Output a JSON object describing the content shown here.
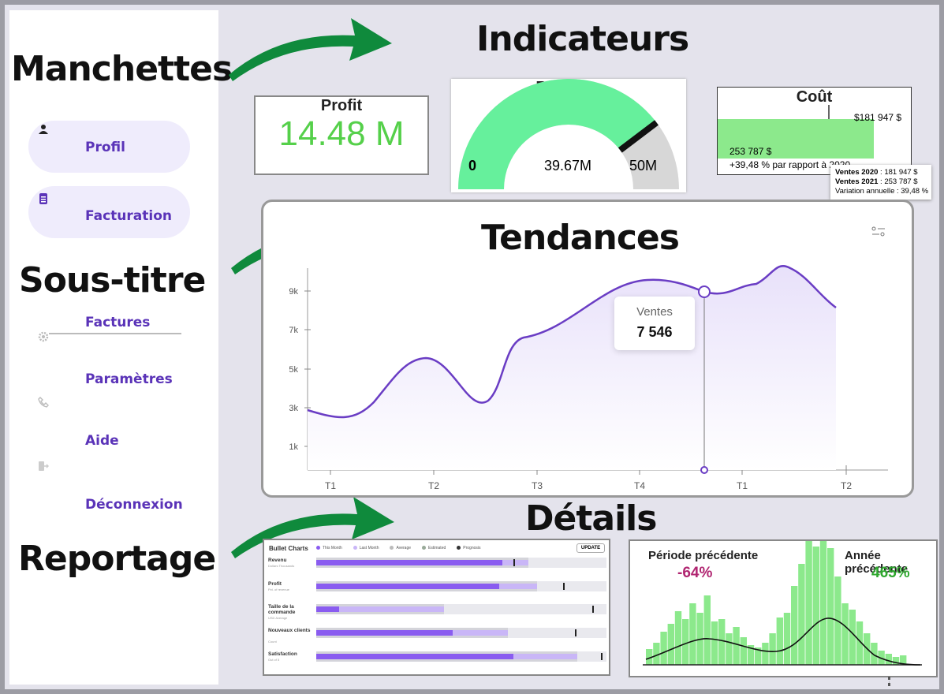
{
  "sidebar": {
    "heading_top": "Manchettes",
    "heading_mid": "Sous-titre",
    "heading_bottom": "Reportage",
    "items": [
      {
        "label": "Profil",
        "icon": "person-icon"
      },
      {
        "label": "Facturation",
        "icon": "document-icon"
      },
      {
        "label": "Factures",
        "icon": "gear-icon"
      },
      {
        "label": "Paramètres",
        "icon": "phone-icon"
      },
      {
        "label": "Aide",
        "icon": "logout-icon"
      },
      {
        "label": "Déconnexion",
        "icon": ""
      }
    ]
  },
  "sections": {
    "indicators": "Indicateurs",
    "trends": "Tendances",
    "details": "Détails"
  },
  "kpis": {
    "profit": {
      "title": "Profit",
      "value": "14.48 M"
    },
    "revenue": {
      "title": "Revenus",
      "min": "0",
      "max": "50M",
      "value": "39.67M",
      "fraction": 0.7934
    },
    "cost": {
      "title": "Coût",
      "target_label": "$181 947 $",
      "bar_label": "253 787 $",
      "change": "+39,48 % par rapport à 2020",
      "tooltip": {
        "line1_key": "Ventes 2020",
        "line1_val": " : 181 947 $",
        "line2_key": "Ventes 2021",
        "line2_val": " : 253 787 $",
        "line3": "Variation annuelle : 39,48 %"
      }
    }
  },
  "trend": {
    "tooltip_label": "Ventes",
    "tooltip_value": "7 546",
    "y_ticks": [
      "9k",
      "7k",
      "5k",
      "3k",
      "1k"
    ],
    "x_ticks": [
      "T1",
      "T2",
      "T3",
      "T4",
      "T1",
      "T2"
    ],
    "color": "#6a3dc4"
  },
  "bullet": {
    "title": "Bullet Charts",
    "legend": [
      "This Month",
      "Last Month",
      "Average",
      "Estimated",
      "Prognosis"
    ],
    "button": "UPDATE",
    "rows": [
      {
        "label": "Revenu",
        "sub": "Dollars Thousands",
        "value": 0.64,
        "previous": 0.73,
        "target": 0.68
      },
      {
        "label": "Profit",
        "sub": "Pct. of revenue",
        "value": 0.63,
        "previous": 0.76,
        "target": 0.85
      },
      {
        "label": "Taille de la commande",
        "sub": "USD Average",
        "value": 0.08,
        "previous": 0.44,
        "target": 0.95
      },
      {
        "label": "Nouveaux clients",
        "sub": "Count",
        "value": 0.47,
        "previous": 0.66,
        "target": 0.89
      },
      {
        "label": "Satisfaction",
        "sub": "Out of 5",
        "value": 0.68,
        "previous": 0.9,
        "target": 0.98
      }
    ]
  },
  "histogram": {
    "left_label": "Période précédente",
    "left_value": "-64%",
    "left_color": "#b02470",
    "right_label": "Année précédente",
    "right_value": "465%",
    "right_color": "#2ea82e"
  },
  "colors": {
    "accent": "#5a33b8",
    "green": "#66f09c",
    "arrow": "#0f8a3c"
  }
}
